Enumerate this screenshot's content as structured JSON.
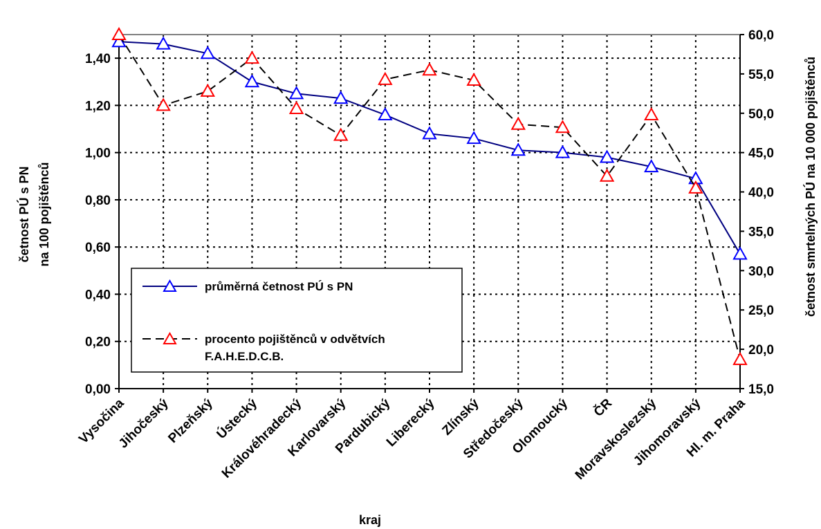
{
  "chart_data": {
    "type": "line",
    "categories": [
      "Vysočina",
      "Jihočeský",
      "Plzeňský",
      "Ústecký",
      "Královéhradecký",
      "Karlovarský",
      "Pardubický",
      "Liberecký",
      "Zlínský",
      "Středočeský",
      "Olomoucký",
      "ČR",
      "Moravskoslezský",
      "Jihomoravský",
      "Hl. m. Praha"
    ],
    "xlabel": "kraj",
    "ylabel_left": [
      "četnost PÚ s PN",
      "na 100 pojištěnců"
    ],
    "ylabel_right": "četnost smrtelných PÚ na 10 000 pojištěnců",
    "y_left": {
      "min": 0,
      "max": 1.5,
      "ticks": [
        "0,00",
        "0,20",
        "0,40",
        "0,60",
        "0,80",
        "1,00",
        "1,20",
        "1,40"
      ]
    },
    "y_right": {
      "min": 15,
      "max": 60,
      "ticks": [
        "15,0",
        "20,0",
        "25,0",
        "30,0",
        "35,0",
        "40,0",
        "45,0",
        "50,0",
        "55,0",
        "60,0"
      ]
    },
    "grid": true,
    "legend_position": "lower-left",
    "series": [
      {
        "name": "průměrná četnost PÚ s PN",
        "axis": "left",
        "line_style": "solid",
        "line_color": "#000080",
        "marker": "triangle",
        "marker_color": "#0000ff",
        "values": [
          1.47,
          1.46,
          1.42,
          1.3,
          1.25,
          1.23,
          1.16,
          1.08,
          1.06,
          1.01,
          1.0,
          0.98,
          0.94,
          0.89,
          0.57
        ]
      },
      {
        "name": "procento pojištěnců v odvětvích F.A.H.E.D.C.B.",
        "axis": "right",
        "line_style": "dashed",
        "line_color": "#000000",
        "marker": "triangle",
        "marker_color": "#ff0000",
        "values": [
          60.0,
          51.0,
          52.8,
          57.0,
          50.6,
          47.2,
          54.3,
          55.5,
          54.2,
          48.6,
          48.2,
          42.0,
          49.8,
          40.5,
          18.7
        ]
      }
    ]
  }
}
